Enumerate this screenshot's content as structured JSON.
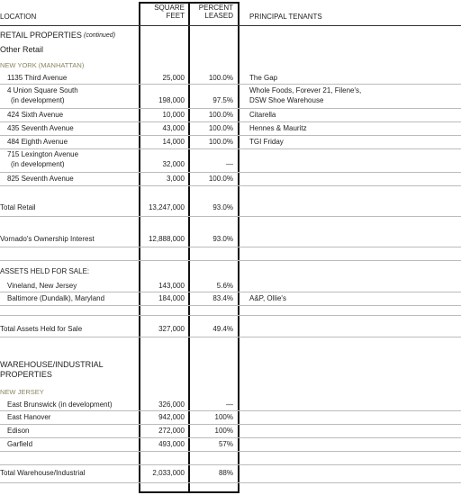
{
  "header": {
    "location": "LOCATION",
    "square_feet": [
      "SQUARE",
      "FEET"
    ],
    "percent_leased": [
      "PERCENT",
      "LEASED"
    ],
    "tenants": "PRINCIPAL TENANTS"
  },
  "rows": [
    {
      "location": [
        "RETAIL PROPERTIES",
        "(continued)"
      ]
    },
    {
      "location": [
        "Other Retail"
      ]
    },
    {
      "location": [
        "NEW YORK (MANHATTAN)"
      ]
    },
    {
      "location": [
        "1135 Third Avenue"
      ],
      "square_feet": "25,000",
      "percent_leased": "100.0%",
      "tenants": [
        "The Gap"
      ]
    },
    {
      "location": [
        "4 Union Square South",
        "(in development)"
      ],
      "square_feet": "198,000",
      "percent_leased": "97.5%",
      "tenants": [
        "Whole Foods, Forever 21, Filene's,",
        "DSW Shoe Warehouse"
      ]
    },
    {
      "location": [
        "424 Sixth Avenue"
      ],
      "square_feet": "10,000",
      "percent_leased": "100.0%",
      "tenants": [
        "Citarella"
      ]
    },
    {
      "location": [
        "435 Seventh Avenue"
      ],
      "square_feet": "43,000",
      "percent_leased": "100.0%",
      "tenants": [
        "Hennes & Mauritz"
      ]
    },
    {
      "location": [
        "484 Eighth Avenue"
      ],
      "square_feet": "14,000",
      "percent_leased": "100.0%",
      "tenants": [
        "TGI Friday"
      ]
    },
    {
      "location": [
        "715 Lexington Avenue",
        "(in development)"
      ],
      "square_feet": "32,000",
      "percent_leased": "—"
    },
    {
      "location": [
        "825 Seventh Avenue"
      ],
      "square_feet": "3,000",
      "percent_leased": "100.0%"
    },
    {
      "location": [
        "Total Retail"
      ],
      "square_feet": "13,247,000",
      "percent_leased": "93.0%"
    },
    {
      "location": [
        "Vornado's Ownership Interest"
      ],
      "square_feet": "12,888,000",
      "percent_leased": "93.0%"
    },
    {
      "location": [
        "ASSETS HELD FOR SALE:"
      ]
    },
    {
      "location": [
        "Vineland, New Jersey"
      ],
      "square_feet": "143,000",
      "percent_leased": "5.6%"
    },
    {
      "location": [
        "Baltimore (Dundalk), Maryland"
      ],
      "square_feet": "184,000",
      "percent_leased": "83.4%",
      "tenants": [
        "A&P, Ollie's"
      ]
    },
    {
      "location": [
        "Total Assets Held for Sale"
      ],
      "square_feet": "327,000",
      "percent_leased": "49.4%"
    },
    {
      "location": [
        "WAREHOUSE/INDUSTRIAL",
        "PROPERTIES"
      ]
    },
    {
      "location": [
        "NEW JERSEY"
      ]
    },
    {
      "location": [
        "East Brunswick (in development)"
      ],
      "square_feet": "326,000",
      "percent_leased": "—"
    },
    {
      "location": [
        "East Hanover"
      ],
      "square_feet": "942,000",
      "percent_leased": "100%"
    },
    {
      "location": [
        "Edison"
      ],
      "square_feet": "272,000",
      "percent_leased": "100%"
    },
    {
      "location": [
        "Garfield"
      ],
      "square_feet": "493,000",
      "percent_leased": "57%"
    },
    {
      "location": [
        "Total Warehouse/Industrial"
      ],
      "square_feet": "2,033,000",
      "percent_leased": "88%"
    }
  ]
}
